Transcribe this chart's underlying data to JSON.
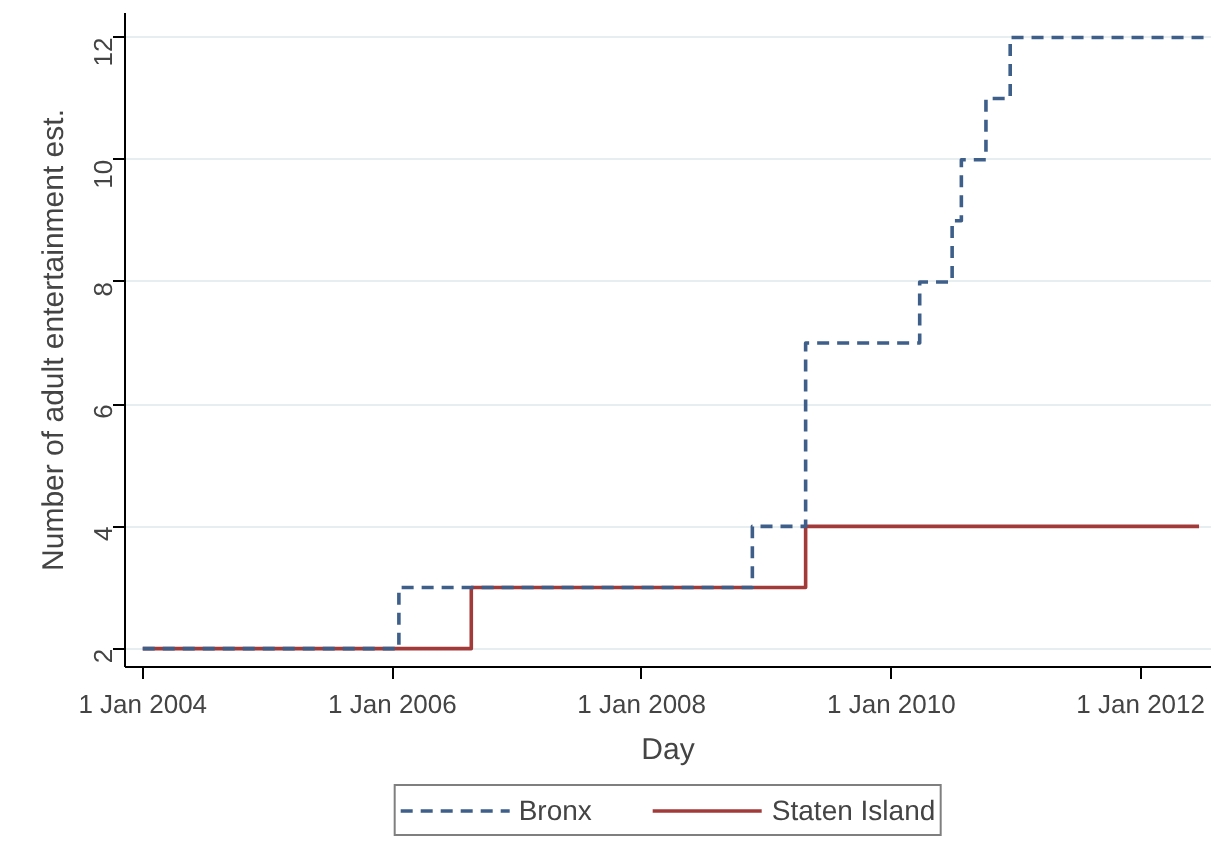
{
  "chart_data": {
    "type": "step",
    "xlabel": "Day",
    "ylabel": "Number of adult entertainment est.",
    "xlim": [
      "2003-11-10",
      "2012-07-25"
    ],
    "ylim": [
      1.7,
      12.4
    ],
    "xticks": [
      {
        "value": "2004-01-01",
        "label": "1 Jan 2004"
      },
      {
        "value": "2006-01-01",
        "label": "1 Jan 2006"
      },
      {
        "value": "2008-01-01",
        "label": "1 Jan 2008"
      },
      {
        "value": "2010-01-01",
        "label": "1 Jan 2010"
      },
      {
        "value": "2012-01-01",
        "label": "1 Jan 2012"
      }
    ],
    "yticks": [
      2,
      4,
      6,
      8,
      10,
      12
    ],
    "grid": "y",
    "legend": "bottom",
    "series": [
      {
        "name": "Bronx",
        "color": "#3e5f8a",
        "line_style": "dashed",
        "x": [
          "2004-01-01",
          "2006-01-20",
          "2008-11-20",
          "2009-04-25",
          "2010-03-25",
          "2010-06-28",
          "2010-07-25",
          "2010-10-05",
          "2010-12-15",
          "2012-07-25"
        ],
        "values": [
          2,
          3,
          4,
          7,
          8,
          9,
          10,
          11,
          12,
          12
        ]
      },
      {
        "name": "Staten Island",
        "color": "#a33a3a",
        "line_style": "solid",
        "x": [
          "2004-01-01",
          "2006-08-20",
          "2009-04-25",
          "2012-06-20"
        ],
        "values": [
          2,
          3,
          4,
          4
        ]
      }
    ]
  }
}
